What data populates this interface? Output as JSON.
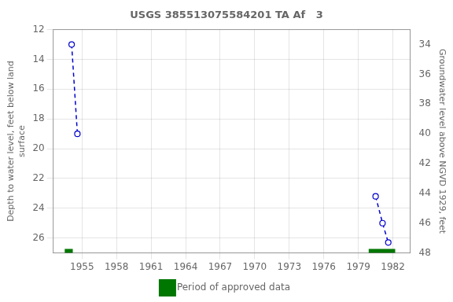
{
  "chart_data": {
    "type": "line",
    "title": "USGS 385513075584201 TA Af   3",
    "y_label": "Depth to water level, feet below land\nsurface",
    "y2_label": "Groundwater level above NGVD 1929, feet",
    "xlim": [
      1952.5,
      1983.5
    ],
    "xticks": [
      1955,
      1958,
      1961,
      1964,
      1967,
      1970,
      1973,
      1976,
      1979,
      1982
    ],
    "ylim": [
      27,
      12
    ],
    "yticks": [
      12,
      14,
      16,
      18,
      20,
      22,
      24,
      26
    ],
    "y2lim": [
      48,
      33
    ],
    "y2ticks": [
      34,
      36,
      38,
      40,
      42,
      44,
      46,
      48
    ],
    "grid": true,
    "legend": "bottom",
    "series": [
      {
        "color": "#0000cc",
        "line_style": "dashed",
        "marker": "circle",
        "x": [
          1954.1,
          1954.6
        ],
        "values": [
          13.0,
          19.0
        ]
      },
      {
        "color": "#0000cc",
        "line_style": "dashed",
        "marker": "circle",
        "x": [
          1980.5,
          1981.1,
          1981.6
        ],
        "values": [
          23.2,
          25.0,
          26.3
        ]
      }
    ],
    "approved_periods": {
      "name": "Period of approved data",
      "color": "#007700",
      "periods": [
        [
          1953.5,
          1954.2
        ],
        [
          1979.9,
          1982.2
        ]
      ]
    }
  }
}
